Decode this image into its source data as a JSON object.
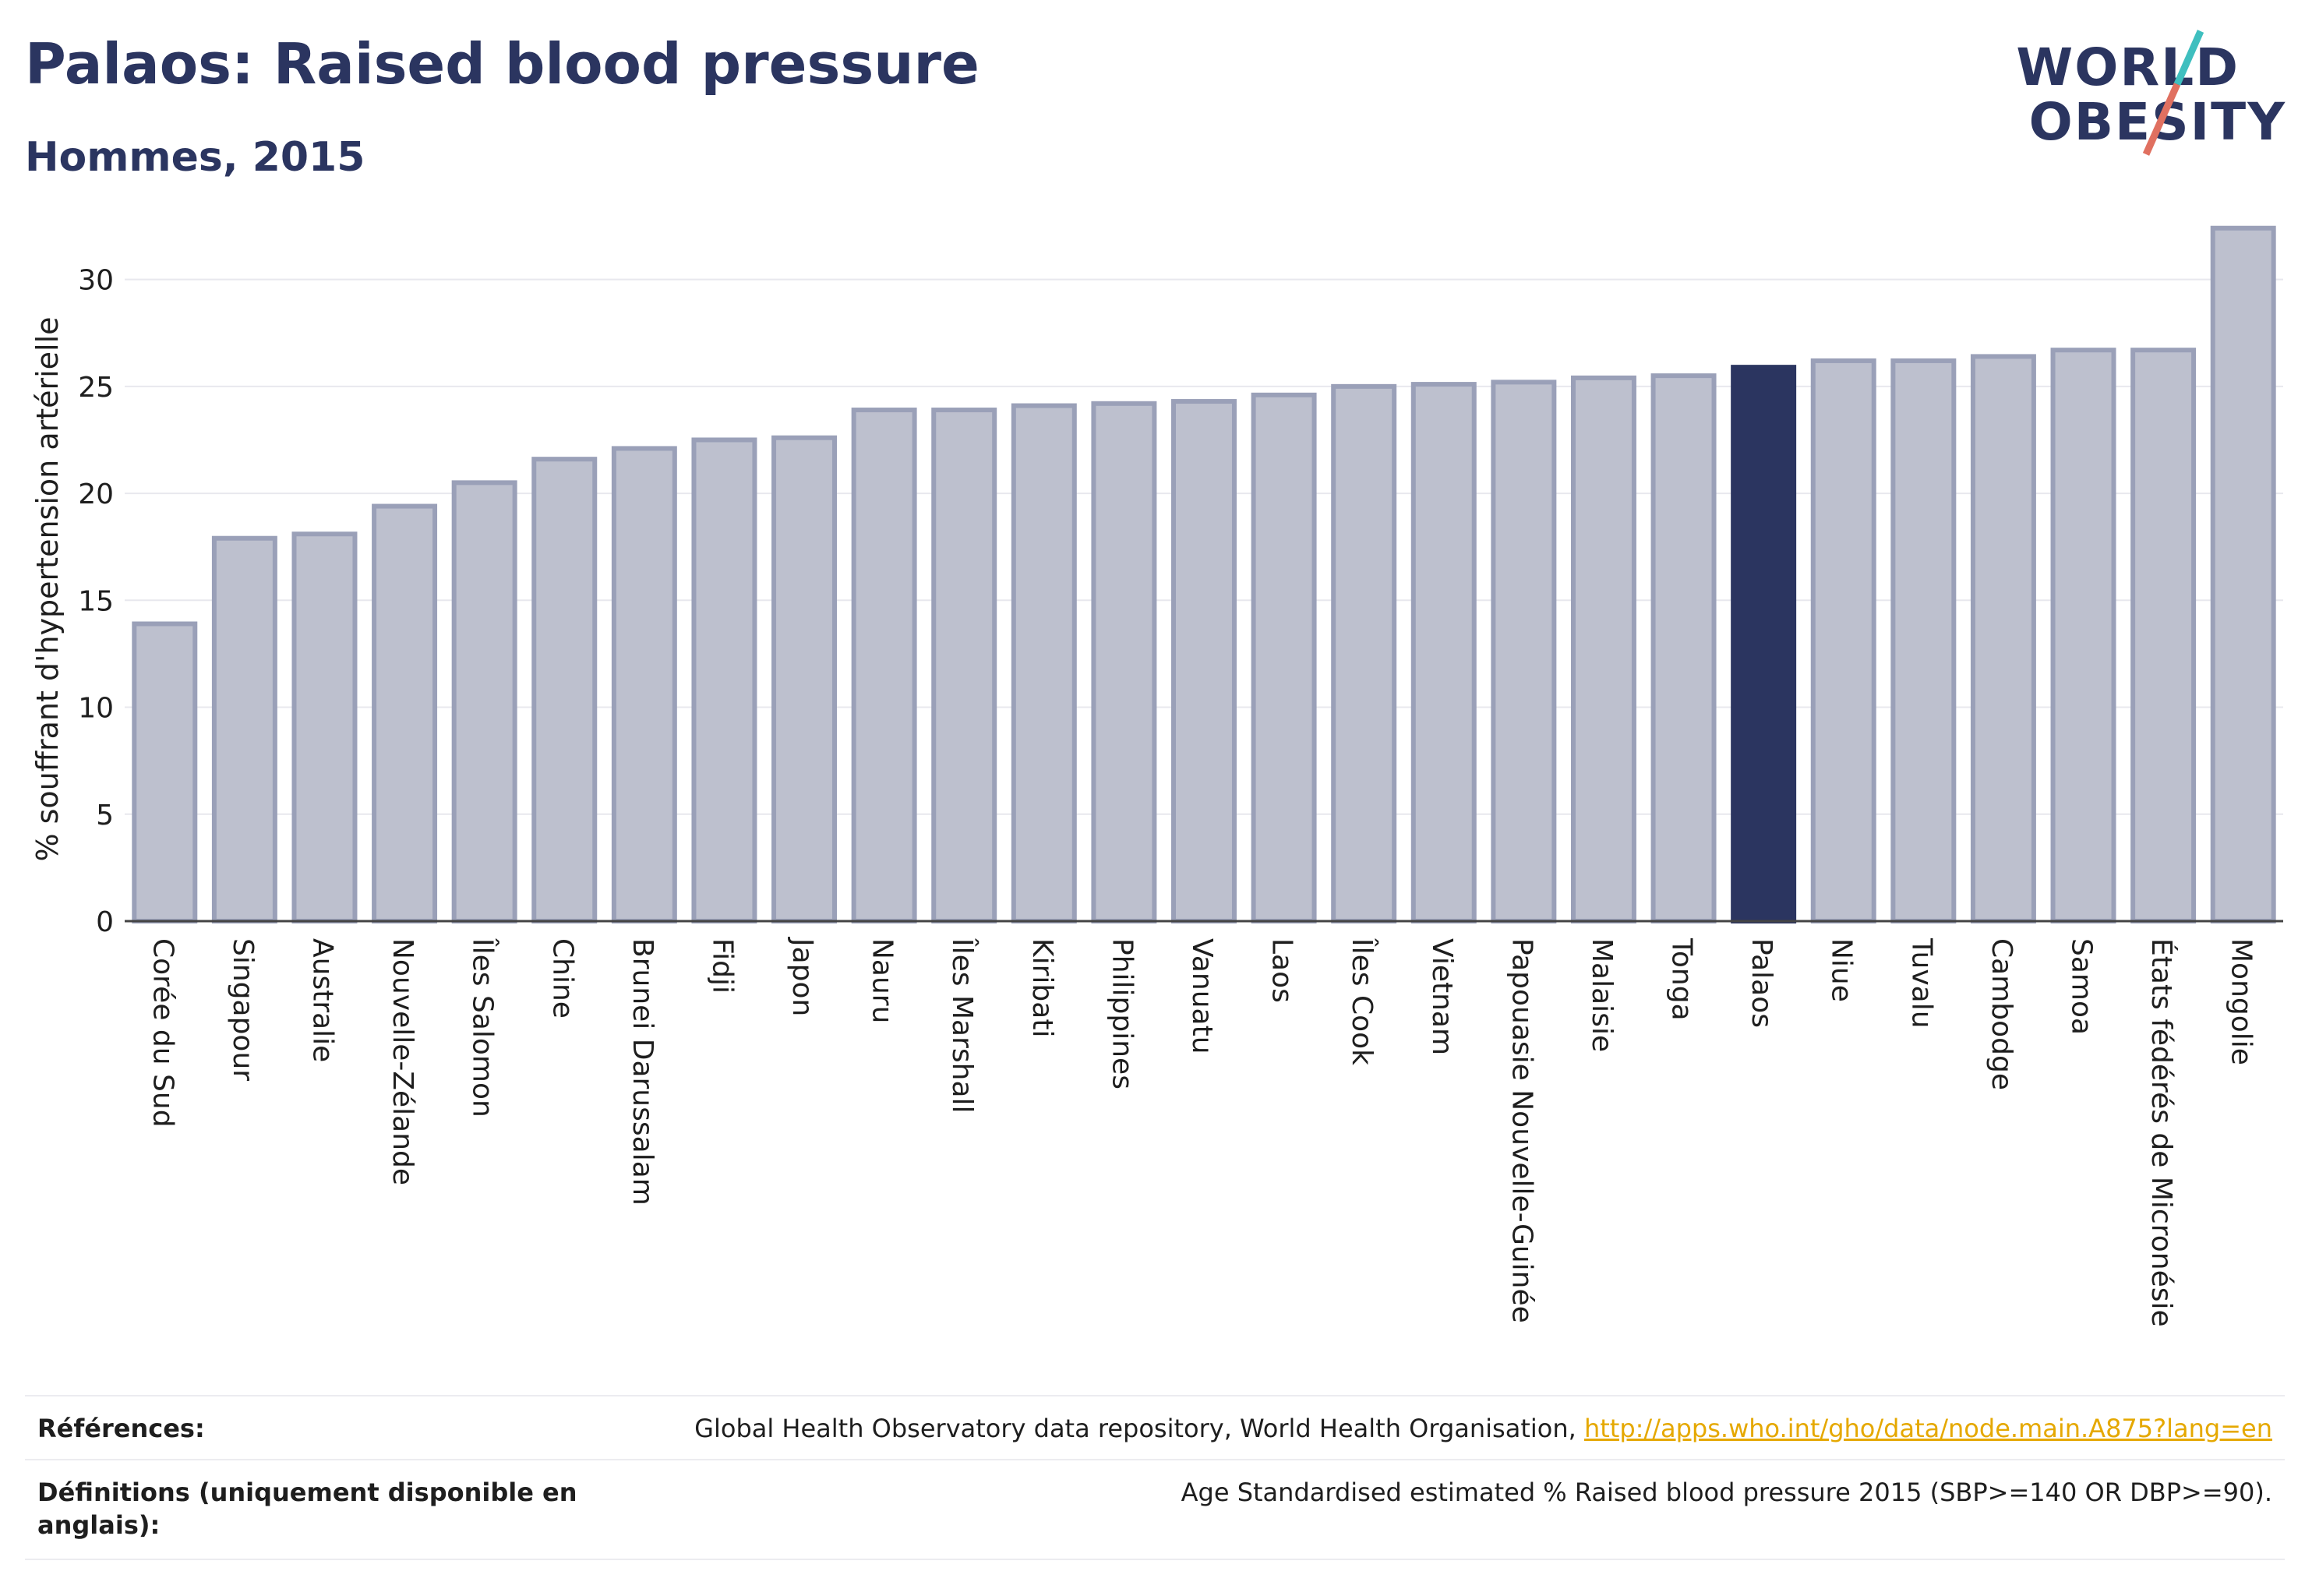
{
  "header": {
    "title": "Palaos: Raised blood pressure",
    "subtitle": "Hommes, 2015"
  },
  "logo": {
    "line1": "WORLD",
    "line2": "OBESITY"
  },
  "colors": {
    "highlight": "#2b3560",
    "bar_fill": "#bdc0ce",
    "bar_stroke": "#9aa0b8",
    "accent_teal": "#3fbfbf",
    "accent_coral": "#e07060"
  },
  "chart_data": {
    "type": "bar",
    "ylabel": "% souffrant d'hypertension artérielle",
    "ylim": [
      0,
      32.5
    ],
    "yticks": [
      0,
      5,
      10,
      15,
      20,
      25,
      30
    ],
    "highlight": "Palaos",
    "categories": [
      "Corée du Sud",
      "Singapour",
      "Australie",
      "Nouvelle-Zélande",
      "Îles Salomon",
      "Chine",
      "Brunei Darussalam",
      "Fidji",
      "Japon",
      "Nauru",
      "Îles Marshall",
      "Kiribati",
      "Philippines",
      "Vanuatu",
      "Laos",
      "Îles Cook",
      "Vietnam",
      "Papouasie Nouvelle-Guinée",
      "Malaisie",
      "Tonga",
      "Palaos",
      "Niue",
      "Tuvalu",
      "Cambodge",
      "Samoa",
      "États fédérés de Micronésie",
      "Mongolie"
    ],
    "values": [
      13.9,
      17.9,
      18.1,
      19.4,
      20.5,
      21.6,
      22.1,
      22.5,
      22.6,
      23.9,
      23.9,
      24.1,
      24.2,
      24.3,
      24.6,
      25.0,
      25.1,
      25.2,
      25.4,
      25.5,
      25.9,
      26.2,
      26.2,
      26.4,
      26.7,
      26.7,
      32.4
    ]
  },
  "references": {
    "refs_label": "Références:",
    "refs_text": "Global Health Observatory data repository, World Health Organisation, ",
    "refs_link": "http://apps.who.int/gho/data/node.main.A875?lang=en",
    "defs_label_line1": "Définitions (uniquement disponible en",
    "defs_label_line2": "anglais):",
    "defs_text": "Age Standardised estimated % Raised blood pressure 2015 (SBP>=140 OR DBP>=90)."
  }
}
